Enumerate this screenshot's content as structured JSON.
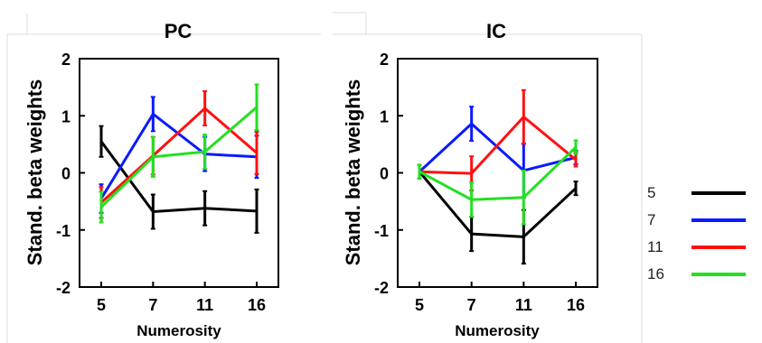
{
  "chart_data": [
    {
      "type": "line",
      "title": "PC",
      "xlabel": "Numerosity",
      "ylabel": "Stand. beta weights",
      "categories": [
        "5",
        "7",
        "11",
        "16"
      ],
      "ylim": [
        -2,
        2
      ],
      "yticks": [
        2,
        1,
        0,
        -1,
        -2
      ],
      "series": [
        {
          "name": "5",
          "color": "#000000",
          "values": [
            0.55,
            -0.68,
            -0.62,
            -0.67
          ],
          "errors": [
            0.27,
            0.3,
            0.3,
            0.38
          ]
        },
        {
          "name": "7",
          "color": "#0a1aff",
          "values": [
            -0.45,
            1.03,
            0.33,
            0.28
          ],
          "errors": [
            0.25,
            0.3,
            0.3,
            0.37
          ]
        },
        {
          "name": "11",
          "color": "#ff1010",
          "values": [
            -0.52,
            0.3,
            1.13,
            0.35
          ],
          "errors": [
            0.27,
            0.33,
            0.3,
            0.37
          ]
        },
        {
          "name": "16",
          "color": "#22e022",
          "values": [
            -0.6,
            0.28,
            0.37,
            1.15
          ],
          "errors": [
            0.27,
            0.35,
            0.3,
            0.4
          ]
        }
      ]
    },
    {
      "type": "line",
      "title": "IC",
      "xlabel": "Numerosity",
      "ylabel": "Stand. beta weights",
      "categories": [
        "5",
        "7",
        "11",
        "16"
      ],
      "ylim": [
        -2,
        2
      ],
      "yticks": [
        2,
        1,
        0,
        -1,
        -2
      ],
      "series": [
        {
          "name": "5",
          "color": "#000000",
          "values": [
            0.02,
            -1.07,
            -1.12,
            -0.27
          ],
          "errors": [
            0.12,
            0.3,
            0.47,
            0.12
          ]
        },
        {
          "name": "7",
          "color": "#0a1aff",
          "values": [
            0.02,
            0.86,
            0.04,
            0.27
          ],
          "errors": [
            0.12,
            0.3,
            0.47,
            0.12
          ]
        },
        {
          "name": "11",
          "color": "#ff1010",
          "values": [
            0.02,
            -0.01,
            0.98,
            0.23
          ],
          "errors": [
            0.12,
            0.3,
            0.47,
            0.12
          ]
        },
        {
          "name": "16",
          "color": "#22e022",
          "values": [
            0.02,
            -0.47,
            -0.43,
            0.45
          ],
          "errors": [
            0.12,
            0.3,
            0.47,
            0.12
          ]
        }
      ]
    }
  ],
  "legend": [
    {
      "label": "5",
      "color": "#000000"
    },
    {
      "label": "7",
      "color": "#0a1aff"
    },
    {
      "label": "11",
      "color": "#ff1010"
    },
    {
      "label": "16",
      "color": "#22e022"
    }
  ]
}
